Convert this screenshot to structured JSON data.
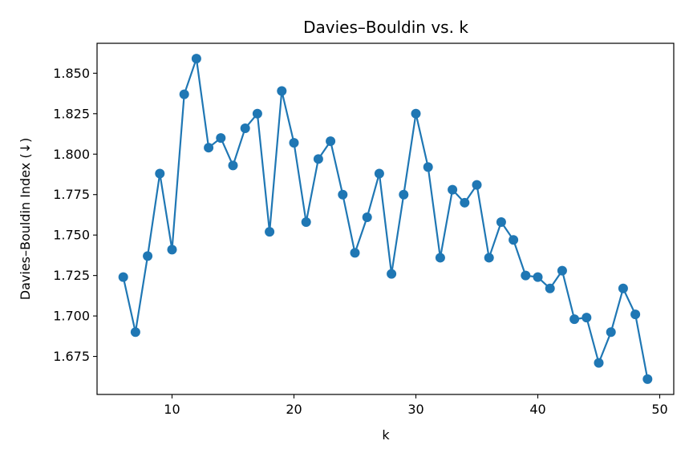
{
  "chart_data": {
    "type": "line",
    "title": "Davies–Bouldin vs. k",
    "xlabel": "k",
    "ylabel": "Davies–Bouldin Index (↓)",
    "xlim": [
      3.85,
      51.15
    ],
    "ylim": [
      1.6515,
      1.8685
    ],
    "xticks": [
      10,
      20,
      30,
      40,
      50
    ],
    "yticks": [
      1.675,
      1.7,
      1.725,
      1.75,
      1.775,
      1.8,
      1.825,
      1.85
    ],
    "xtick_labels": [
      "10",
      "20",
      "30",
      "40",
      "50"
    ],
    "ytick_labels": [
      "1.675",
      "1.700",
      "1.725",
      "1.750",
      "1.775",
      "1.800",
      "1.825",
      "1.850"
    ],
    "grid": false,
    "color": "#1f77b4",
    "marker": "circle",
    "x": [
      6,
      7,
      8,
      9,
      10,
      11,
      12,
      13,
      14,
      15,
      16,
      17,
      18,
      19,
      20,
      21,
      22,
      23,
      24,
      25,
      26,
      27,
      28,
      29,
      30,
      31,
      32,
      33,
      34,
      35,
      36,
      37,
      38,
      39,
      40,
      41,
      42,
      43,
      44,
      45,
      46,
      47,
      48,
      49
    ],
    "y": [
      1.724,
      1.69,
      1.737,
      1.788,
      1.741,
      1.837,
      1.859,
      1.804,
      1.81,
      1.793,
      1.816,
      1.825,
      1.752,
      1.839,
      1.807,
      1.758,
      1.797,
      1.808,
      1.775,
      1.739,
      1.761,
      1.788,
      1.726,
      1.775,
      1.825,
      1.792,
      1.736,
      1.778,
      1.77,
      1.781,
      1.736,
      1.758,
      1.747,
      1.725,
      1.724,
      1.717,
      1.728,
      1.698,
      1.699,
      1.671,
      1.69,
      1.717,
      1.701,
      1.661
    ]
  }
}
